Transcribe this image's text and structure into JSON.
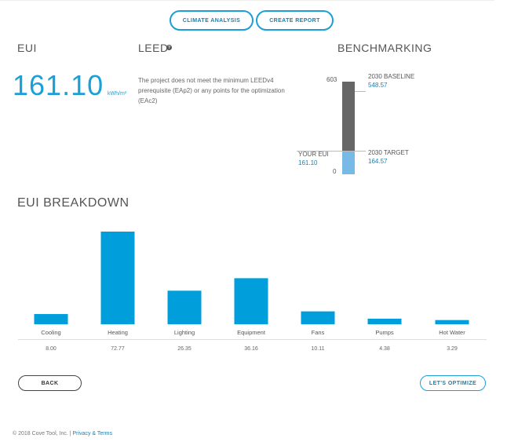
{
  "header": {
    "climate_analysis_label": "CLIMATE ANALYSIS",
    "create_report_label": "CREATE REPORT"
  },
  "eui": {
    "title": "EUI",
    "value": "161.10",
    "unit": "kWh/m²"
  },
  "leed": {
    "title": "LEED",
    "help_icon": "question-circle-icon",
    "text": "The project does not meet the minimum LEEDv4 prerequisite (EAp2) or any points for the optimization (EAc2)"
  },
  "benchmarking": {
    "title": "BENCHMARKING",
    "max_label": "603",
    "min_label": "0",
    "baseline_label": "2030 BASELINE",
    "baseline_value": "548.57",
    "target_label": "2030 TARGET",
    "target_value": "164.57",
    "your_eui_label": "YOUR EUI",
    "your_eui_value": "161.10",
    "scale_max": 603,
    "baseline": 548.57,
    "target": 164.57,
    "your_eui": 161.1,
    "colors": {
      "upper": "#666666",
      "lower": "#79b9e6"
    }
  },
  "breakdown": {
    "title": "EUI BREAKDOWN"
  },
  "chart_data": {
    "type": "bar",
    "title": "EUI BREAKDOWN",
    "categories": [
      "Cooling",
      "Heating",
      "Lighting",
      "Equipment",
      "Fans",
      "Pumps",
      "Hot Water"
    ],
    "values": [
      8.0,
      72.77,
      26.35,
      36.16,
      10.11,
      4.38,
      3.29
    ],
    "value_labels": [
      "8.00",
      "72.77",
      "26.35",
      "36.16",
      "10.11",
      "4.38",
      "3.29"
    ],
    "ylim": [
      0,
      72.77
    ],
    "color": "#009fdb",
    "grid": false
  },
  "footer": {
    "copyright": "© 2018 Cove Tool, Inc. |",
    "privacy_label": "Privacy & Terms"
  },
  "actions": {
    "back_label": "BACK",
    "optimize_label": "LET'S OPTIMIZE"
  }
}
